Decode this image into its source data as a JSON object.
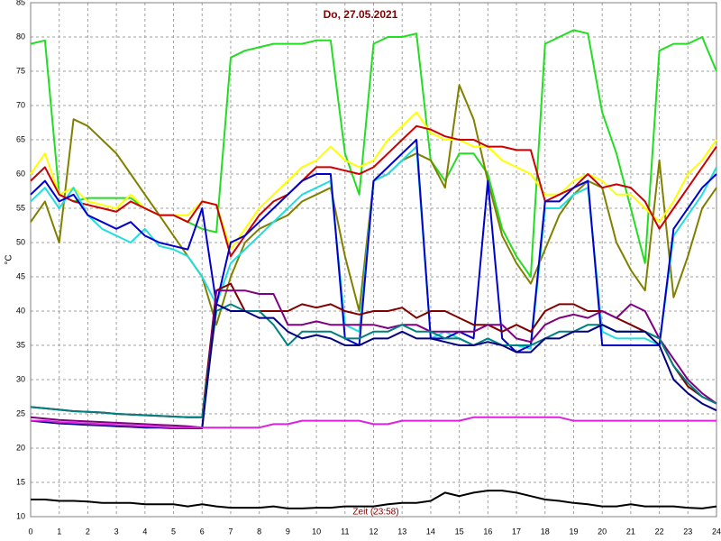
{
  "chart_data": {
    "type": "line",
    "title": "Do, 27.05.2021",
    "ylabel": "°C",
    "annotation": "Zeit (23:58)",
    "x": [
      0,
      0.5,
      1,
      1.5,
      2,
      2.5,
      3,
      3.5,
      4,
      4.5,
      5,
      5.5,
      6,
      6.5,
      7,
      7.5,
      8,
      8.5,
      9,
      9.5,
      10,
      10.5,
      11,
      11.5,
      12,
      12.5,
      13,
      13.5,
      14,
      14.5,
      15,
      15.5,
      16,
      16.5,
      17,
      17.5,
      18,
      18.5,
      19,
      19.5,
      20,
      20.5,
      21,
      21.5,
      22,
      22.5,
      23,
      23.5,
      24
    ],
    "xlim": [
      0,
      24
    ],
    "ylim": [
      10,
      85
    ],
    "xticks": [
      0,
      1,
      2,
      3,
      4,
      5,
      6,
      7,
      8,
      9,
      10,
      11,
      12,
      13,
      14,
      15,
      16,
      17,
      18,
      19,
      20,
      21,
      22,
      23,
      24
    ],
    "yticks": [
      10,
      15,
      20,
      25,
      30,
      35,
      40,
      45,
      50,
      55,
      60,
      65,
      70,
      75,
      80,
      85
    ],
    "grid": true,
    "series": [
      {
        "color": "#22dd22",
        "values": [
          79,
          79.5,
          57,
          56,
          56.5,
          56.5,
          56.5,
          56.5,
          55,
          54,
          54,
          53,
          52,
          51.5,
          77,
          78,
          78.5,
          79,
          79,
          79,
          79.5,
          79.5,
          63,
          57,
          79,
          80,
          80,
          80.5,
          62,
          59,
          63,
          63,
          60,
          52,
          48,
          45,
          79,
          80,
          81,
          80.5,
          69,
          63,
          55,
          47,
          78,
          79,
          79,
          80,
          75
        ]
      },
      {
        "color": "#808000",
        "values": [
          53,
          56,
          50,
          68,
          67,
          65,
          63,
          60,
          57,
          54,
          51,
          48,
          45,
          38,
          45,
          50,
          52,
          53,
          54,
          56,
          57,
          58,
          48,
          40,
          59,
          60,
          62,
          63,
          62,
          58,
          73,
          68,
          59,
          51,
          47,
          44,
          49,
          54,
          57,
          59,
          58,
          50,
          46,
          43,
          62,
          42,
          48,
          55,
          58
        ]
      },
      {
        "color": "#ffff00",
        "values": [
          60,
          63,
          57,
          58,
          56,
          55.5,
          55,
          57,
          55,
          54,
          54,
          54,
          56,
          55.5,
          49,
          52,
          55,
          57,
          59,
          61,
          62,
          64,
          62,
          61,
          62,
          65,
          67,
          69,
          66,
          65,
          65,
          64,
          64,
          62,
          61,
          60,
          57,
          57,
          59,
          60,
          59,
          57,
          57,
          55,
          53,
          56,
          60,
          62,
          65
        ]
      },
      {
        "color": "#cc0000",
        "values": [
          59,
          61,
          57,
          56,
          55.5,
          55,
          54.5,
          56,
          55,
          54,
          54,
          53,
          56,
          55.5,
          48,
          51,
          54,
          56,
          57,
          59,
          61,
          61,
          60.5,
          60,
          61,
          63,
          65,
          67,
          66.5,
          65.5,
          65,
          65,
          64,
          64,
          63.5,
          63.5,
          56,
          57,
          58,
          60,
          58,
          58.5,
          58,
          56,
          52,
          55,
          58,
          61,
          64
        ]
      },
      {
        "color": "#22dddd",
        "values": [
          56,
          58,
          55,
          58,
          54,
          52,
          51,
          50,
          52,
          49.5,
          49,
          48,
          45,
          41,
          47,
          49,
          51,
          53,
          55,
          57,
          58,
          59,
          38,
          37,
          59,
          60,
          62,
          64,
          36,
          37,
          36,
          35,
          36,
          35,
          35,
          34.5,
          55,
          55,
          57,
          58,
          37,
          36,
          36,
          36,
          35,
          51,
          54,
          57,
          61
        ]
      },
      {
        "color": "#0000cc",
        "values": [
          57,
          59,
          56,
          57,
          54,
          53,
          52,
          53,
          51,
          50,
          49.5,
          49,
          55,
          41,
          50,
          51,
          53,
          55,
          57,
          59,
          60,
          60,
          36,
          35,
          59,
          61,
          63,
          65,
          36,
          36,
          37,
          36,
          59,
          36,
          34,
          35,
          56,
          56,
          58,
          59,
          35,
          35,
          35,
          35,
          35,
          52,
          55,
          58,
          60
        ]
      },
      {
        "color": "#800000",
        "values": [
          26,
          25.8,
          25.6,
          25.4,
          25.3,
          25.2,
          25,
          24.9,
          24.8,
          24.7,
          24.6,
          24.5,
          24.5,
          43,
          44,
          40,
          40,
          40,
          40,
          41,
          40.5,
          41,
          40,
          39.5,
          40,
          40,
          40.5,
          39,
          40,
          40,
          39,
          38,
          38,
          37,
          38,
          37,
          40,
          41,
          41,
          40,
          40,
          39,
          38,
          37,
          36,
          32,
          29,
          27.5,
          26.5
        ]
      },
      {
        "color": "#800080",
        "values": [
          24.5,
          24.3,
          24.1,
          24,
          23.9,
          23.8,
          23.7,
          23.6,
          23.5,
          23.4,
          23.3,
          23.2,
          23,
          43,
          43,
          43,
          42.5,
          42.5,
          38,
          38,
          38.5,
          38,
          38,
          38,
          38,
          37.5,
          38,
          38,
          37,
          37,
          37,
          37,
          38,
          38,
          36,
          35.5,
          38,
          39,
          39.5,
          39,
          40,
          39,
          41,
          40,
          36,
          33,
          30,
          28,
          26.5
        ]
      },
      {
        "color": "#008080",
        "values": [
          26,
          25.8,
          25.6,
          25.4,
          25.3,
          25.2,
          25,
          24.9,
          24.8,
          24.7,
          24.6,
          24.5,
          24.5,
          40,
          41,
          40,
          40,
          38,
          35,
          37,
          37,
          37,
          36,
          36,
          37,
          37,
          38,
          37,
          37,
          36,
          36,
          35,
          36,
          35,
          35,
          35,
          36,
          37,
          37,
          38,
          38,
          37,
          37,
          37,
          36,
          32,
          29.5,
          27.5,
          26.5
        ]
      },
      {
        "color": "#000080",
        "values": [
          24,
          23.8,
          23.6,
          23.5,
          23.4,
          23.3,
          23.2,
          23.1,
          23,
          23,
          22.9,
          22.9,
          22.9,
          41,
          40,
          40,
          39,
          39,
          37,
          36,
          36.5,
          36,
          35,
          35,
          36,
          36,
          37,
          36,
          36,
          35.5,
          35,
          35,
          35.5,
          35,
          34,
          34,
          36,
          36,
          37,
          37,
          38,
          37,
          37,
          37,
          35,
          30,
          28,
          26.5,
          25.5
        ]
      },
      {
        "color": "#dd22dd",
        "values": [
          24,
          24,
          23.8,
          23.7,
          23.6,
          23.5,
          23.4,
          23.3,
          23.2,
          23.1,
          23,
          23,
          23,
          23,
          23,
          23,
          23,
          23.5,
          23.5,
          24,
          24,
          24,
          24,
          24,
          23.5,
          23.5,
          24,
          24,
          24,
          24,
          24,
          24.5,
          24.5,
          24.5,
          24.5,
          24.5,
          24.5,
          24.5,
          24,
          24,
          24,
          24,
          24,
          24,
          24,
          24,
          24,
          24,
          24
        ]
      },
      {
        "color": "#000000",
        "values": [
          12.5,
          12.5,
          12.3,
          12.3,
          12.2,
          12,
          12,
          12,
          11.8,
          11.8,
          11.8,
          11.5,
          11.8,
          11.5,
          11.3,
          11.3,
          11.3,
          11.5,
          11.2,
          11.2,
          11.3,
          11.3,
          11.5,
          11.5,
          11.5,
          11.8,
          12,
          12,
          12.3,
          13.5,
          13,
          13.5,
          13.8,
          13.8,
          13.5,
          13,
          12.5,
          12.3,
          12,
          11.8,
          11.5,
          11.5,
          11.8,
          11.5,
          11.5,
          11.5,
          11.3,
          11.2,
          11.5
        ]
      }
    ]
  }
}
